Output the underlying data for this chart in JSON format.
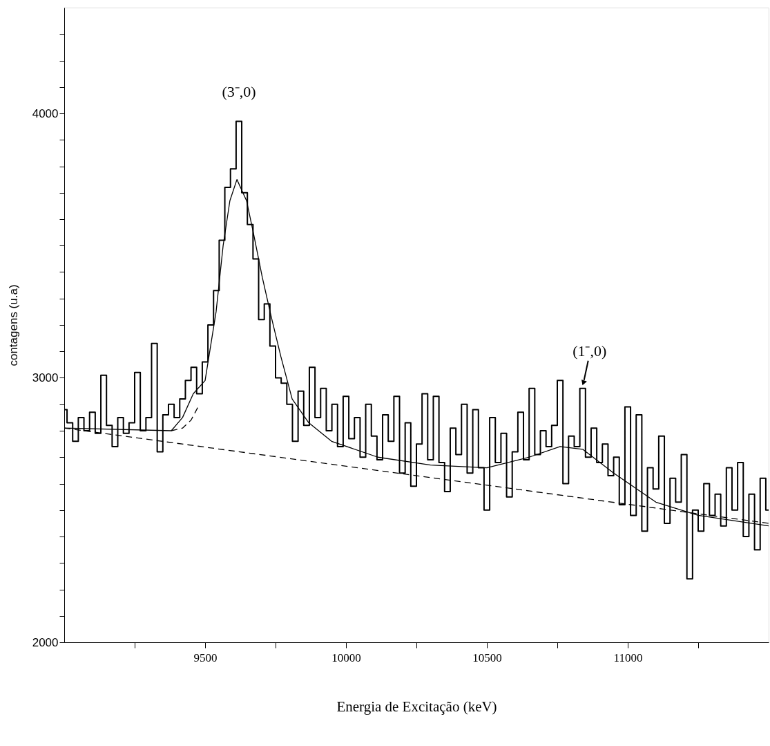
{
  "chart_data": {
    "type": "step",
    "xlabel": "Energia de Excitação (keV)",
    "ylabel": "contagens (u.a)",
    "xlim": [
      9000,
      11500
    ],
    "ylim": [
      2000,
      4400
    ],
    "xticks": [
      {
        "value": 9250,
        "label": null
      },
      9500,
      {
        "value": 9750,
        "label": null
      },
      10000,
      {
        "value": 10250,
        "label": null
      },
      10500,
      {
        "value": 10750,
        "label": null
      },
      11000,
      {
        "value": 11250,
        "label": null
      }
    ],
    "yticks": [
      2000,
      {
        "value": 2100,
        "label": null
      },
      {
        "value": 2200,
        "label": null
      },
      {
        "value": 2300,
        "label": null
      },
      {
        "value": 2400,
        "label": null
      },
      {
        "value": 2500,
        "label": null
      },
      {
        "value": 2600,
        "label": null
      },
      {
        "value": 2700,
        "label": null
      },
      {
        "value": 2800,
        "label": null
      },
      {
        "value": 2900,
        "label": null
      },
      3000,
      {
        "value": 3100,
        "label": null
      },
      {
        "value": 3200,
        "label": null
      },
      {
        "value": 3300,
        "label": null
      },
      {
        "value": 3400,
        "label": null
      },
      {
        "value": 3500,
        "label": null
      },
      {
        "value": 3600,
        "label": null
      },
      {
        "value": 3700,
        "label": null
      },
      {
        "value": 3800,
        "label": null
      },
      {
        "value": 3900,
        "label": null
      },
      4000,
      {
        "value": 4100,
        "label": null
      },
      {
        "value": 4200,
        "label": null
      },
      {
        "value": 4300,
        "label": null
      }
    ],
    "grid": false,
    "x": [
      9000,
      9020,
      9040,
      9060,
      9080,
      9100,
      9120,
      9140,
      9160,
      9180,
      9200,
      9220,
      9240,
      9260,
      9280,
      9300,
      9320,
      9340,
      9360,
      9380,
      9400,
      9420,
      9440,
      9460,
      9480,
      9500,
      9520,
      9540,
      9560,
      9580,
      9600,
      9620,
      9640,
      9660,
      9680,
      9700,
      9720,
      9740,
      9760,
      9780,
      9800,
      9820,
      9840,
      9860,
      9880,
      9900,
      9920,
      9940,
      9960,
      9980,
      10000,
      10020,
      10040,
      10060,
      10080,
      10100,
      10120,
      10140,
      10160,
      10180,
      10200,
      10220,
      10240,
      10260,
      10280,
      10300,
      10320,
      10340,
      10360,
      10380,
      10400,
      10420,
      10440,
      10460,
      10480,
      10500,
      10520,
      10540,
      10560,
      10580,
      10600,
      10620,
      10640,
      10660,
      10680,
      10700,
      10720,
      10740,
      10760,
      10780,
      10800,
      10820,
      10840,
      10860,
      10880,
      10900,
      10920,
      10940,
      10960,
      10980,
      11000,
      11020,
      11040,
      11060,
      11080,
      11100,
      11120,
      11140,
      11160,
      11180,
      11200,
      11220,
      11240,
      11260,
      11280,
      11300,
      11320,
      11340,
      11360,
      11380,
      11400,
      11420,
      11440,
      11460,
      11480,
      11500
    ],
    "series": [
      {
        "type": "step",
        "color": "#000000",
        "values": [
          2880,
          2830,
          2760,
          2850,
          2800,
          2870,
          2790,
          3010,
          2820,
          2740,
          2850,
          2790,
          2830,
          3020,
          2800,
          2850,
          3130,
          2720,
          2860,
          2900,
          2850,
          2920,
          2990,
          3040,
          2940,
          3060,
          3200,
          3330,
          3520,
          3720,
          3790,
          3970,
          3700,
          3580,
          3450,
          3220,
          3280,
          3120,
          3000,
          2980,
          2900,
          2760,
          2950,
          2820,
          3040,
          2850,
          2960,
          2800,
          2900,
          2740,
          2930,
          2770,
          2850,
          2700,
          2900,
          2780,
          2690,
          2860,
          2760,
          2930,
          2640,
          2830,
          2590,
          2750,
          2940,
          2690,
          2930,
          2680,
          2570,
          2810,
          2710,
          2900,
          2640,
          2880,
          2660,
          2500,
          2850,
          2680,
          2790,
          2550,
          2720,
          2870,
          2690,
          2960,
          2710,
          2800,
          2740,
          2820,
          2990,
          2600,
          2780,
          2740,
          2960,
          2700,
          2810,
          2680,
          2750,
          2630,
          2700,
          2520,
          2890,
          2480,
          2860,
          2420,
          2660,
          2580,
          2780,
          2450,
          2620,
          2530,
          2710,
          2240,
          2500,
          2420,
          2600,
          2480,
          2560,
          2440,
          2660,
          2500,
          2680,
          2400,
          2560,
          2350,
          2620,
          2500
        ]
      },
      {
        "type": "line",
        "color": "#000000",
        "x": [
          9000,
          9380,
          9420,
          9458,
          9500,
          9539,
          9564,
          9588,
          9613,
          9630,
          9647,
          9671,
          9703,
          9735,
          9769,
          9809,
          9868,
          9949,
          10113,
          10300,
          10500,
          10650,
          10760,
          10840,
          10950,
          11100,
          11250,
          11500
        ],
        "values": [
          2810,
          2800,
          2850,
          2940,
          2990,
          3250,
          3500,
          3670,
          3750,
          3710,
          3670,
          3550,
          3380,
          3230,
          3080,
          2920,
          2830,
          2760,
          2700,
          2670,
          2660,
          2700,
          2740,
          2730,
          2640,
          2530,
          2480,
          2440
        ]
      },
      {
        "type": "line",
        "line_style": "dashed",
        "color": "#000000",
        "x": [
          9000,
          11500
        ],
        "values": [
          2810,
          2450
        ]
      },
      {
        "type": "line",
        "line_style": "dashed",
        "color": "#000000",
        "x": [
          9380,
          9420,
          9450,
          9475
        ],
        "values": [
          2800,
          2810,
          2840,
          2890
        ]
      }
    ],
    "annotations": [
      {
        "text": "(3⁻,0)",
        "x": 9620,
        "y": 3970
      },
      {
        "text": "(1⁻,0)",
        "x": 10840,
        "y": 2960
      }
    ]
  }
}
